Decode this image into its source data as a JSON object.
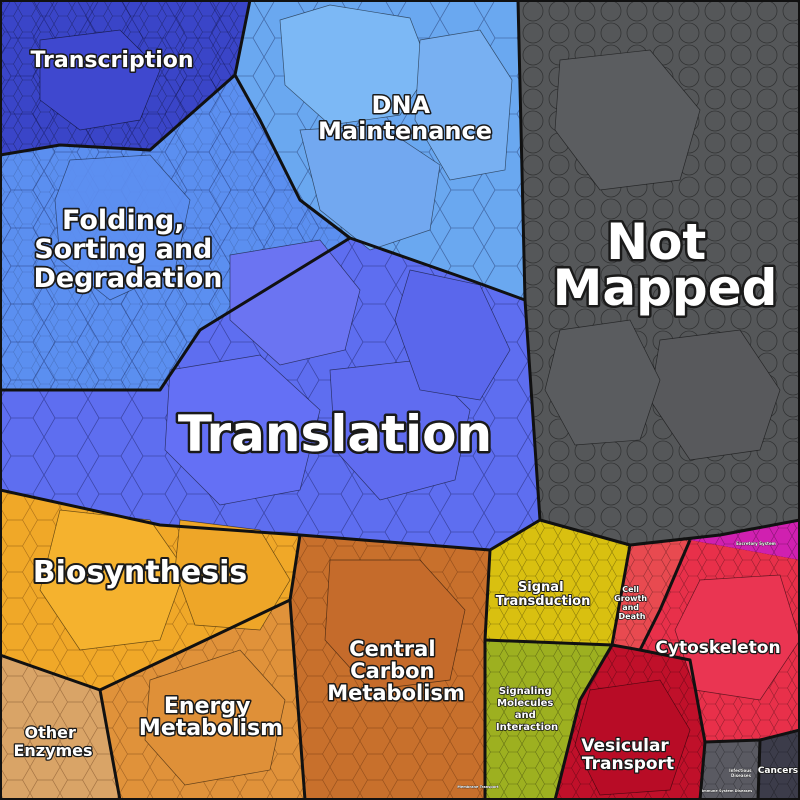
{
  "categories": [
    {
      "id": "transcription",
      "label": "Transcription",
      "color": "#3a45c8"
    },
    {
      "id": "dna-maintenance",
      "label": "DNA Maintenance",
      "color": "#6aa8f0"
    },
    {
      "id": "folding",
      "label": "Folding, Sorting and Degradation",
      "color": "#5b8ff0"
    },
    {
      "id": "translation",
      "label": "Translation",
      "color": "#5e6ef0"
    },
    {
      "id": "not-mapped",
      "label": "Not Mapped",
      "color": "#555759"
    },
    {
      "id": "biosynthesis",
      "label": "Biosynthesis",
      "color": "#f0a828"
    },
    {
      "id": "other-enzymes",
      "label": "Other Enzymes",
      "color": "#d9a467"
    },
    {
      "id": "energy-metabolism",
      "label": "Energy Metabolism",
      "color": "#e0923a"
    },
    {
      "id": "central-carbon",
      "label": "Central Carbon Metabolism",
      "color": "#c8702c"
    },
    {
      "id": "signal-transduction",
      "label": "Signal Transduction",
      "color": "#d9c010"
    },
    {
      "id": "signaling-molecules",
      "label": "Signaling Molecules and Interaction",
      "color": "#9db020"
    },
    {
      "id": "cell-growth",
      "label": "Cell Growth and Death",
      "color": "#e84a50"
    },
    {
      "id": "cytoskeleton",
      "label": "Cytoskeleton",
      "color": "#e8304a"
    },
    {
      "id": "vesicular-transport",
      "label": "Vesicular Transport",
      "color": "#c0102a"
    },
    {
      "id": "cancers",
      "label": "Cancers",
      "color": "#3c3c4a"
    },
    {
      "id": "infectious-diseases",
      "label": "Infectious Diseases",
      "color": "#5a5a62"
    },
    {
      "id": "immune-system",
      "label": "Immune System Diseases",
      "color": "#4a4a55"
    },
    {
      "id": "excretory-system",
      "label": "Excretory System",
      "color": "#d020b0"
    },
    {
      "id": "membrane-transport",
      "label": "Membrane Transport",
      "color": "#8a5a3a"
    }
  ]
}
